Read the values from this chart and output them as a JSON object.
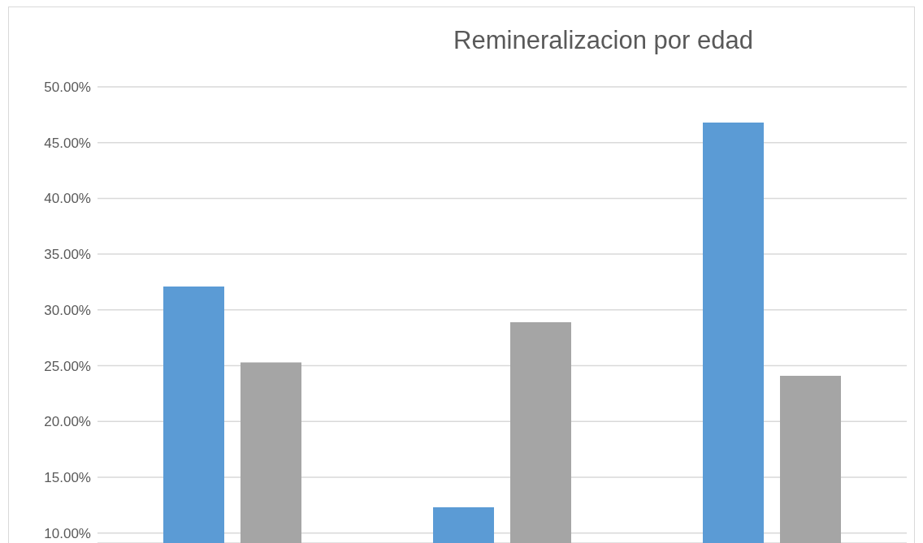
{
  "chart_data": {
    "type": "bar",
    "title": "Remineralizacion por edad",
    "categories": [
      null,
      null,
      null
    ],
    "series": [
      {
        "color": "#5b9bd5",
        "values": [
          32.1,
          12.3,
          46.8
        ]
      },
      {
        "color": "#a5a5a5",
        "values": [
          25.3,
          28.9,
          24.1
        ]
      }
    ],
    "ylim": [
      9.1,
      50
    ],
    "yticks": [
      {
        "value": 10,
        "label": "10.00%"
      },
      {
        "value": 15,
        "label": "15.00%"
      },
      {
        "value": 20,
        "label": "20.00%"
      },
      {
        "value": 25,
        "label": "25.00%"
      },
      {
        "value": 30,
        "label": "30.00%"
      },
      {
        "value": 35,
        "label": "35.00%"
      },
      {
        "value": 40,
        "label": "40.00%"
      },
      {
        "value": 45,
        "label": "45.00%"
      },
      {
        "value": 50,
        "label": "50.00%"
      }
    ],
    "grid": "y",
    "tick_labels": "y"
  }
}
